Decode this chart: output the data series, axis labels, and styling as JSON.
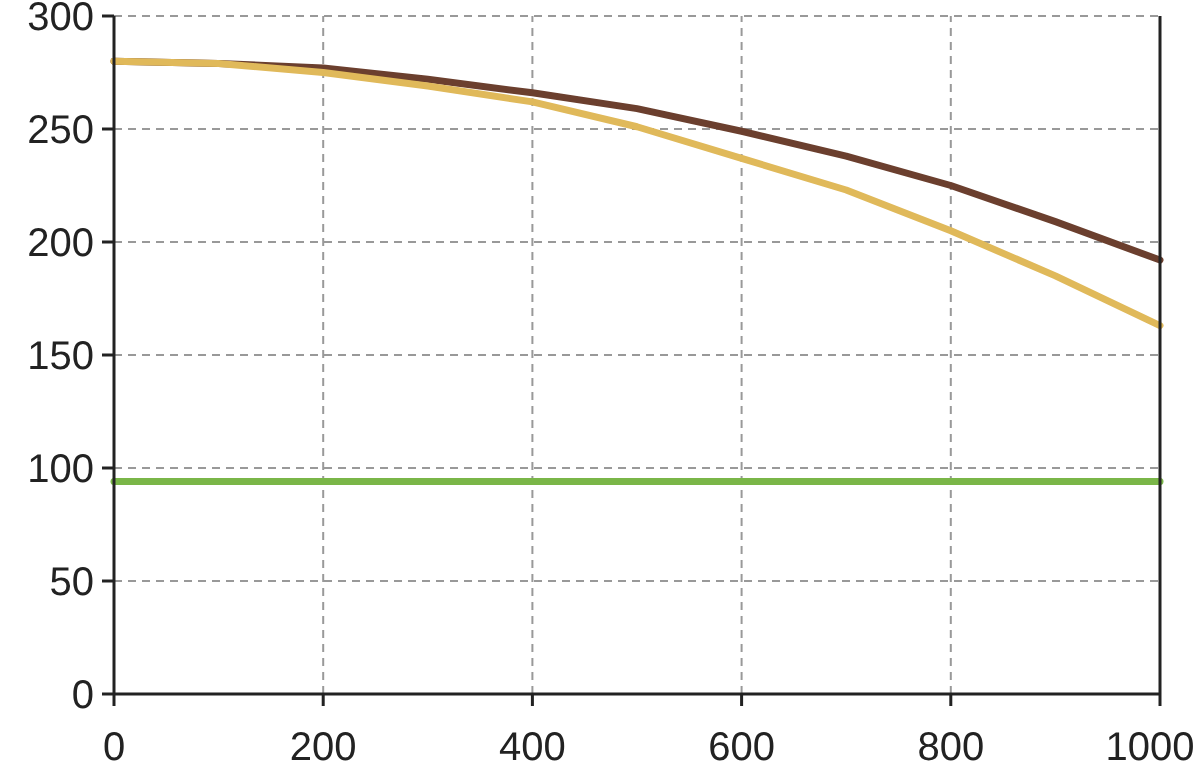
{
  "chart_data": {
    "type": "line",
    "xlim": [
      0,
      1000
    ],
    "ylim": [
      0,
      300
    ],
    "xticks": [
      0,
      200,
      400,
      600,
      800,
      1000
    ],
    "yticks": [
      0,
      50,
      100,
      150,
      200,
      250,
      300
    ],
    "grid": true,
    "marker": "none",
    "line_style": "solid",
    "x": [
      0,
      100,
      200,
      300,
      400,
      500,
      600,
      700,
      800,
      900,
      1000
    ],
    "series": [
      {
        "color": "#6b3f2e",
        "values": [
          280,
          279,
          277,
          272,
          266,
          259,
          249,
          238,
          225,
          209,
          192
        ]
      },
      {
        "color": "#e0b95a",
        "values": [
          280,
          279,
          275,
          269,
          262,
          251,
          237,
          223,
          205,
          185,
          163
        ]
      },
      {
        "color": "#7ab648",
        "x": [
          0,
          1000
        ],
        "values": [
          94,
          94
        ]
      }
    ]
  }
}
